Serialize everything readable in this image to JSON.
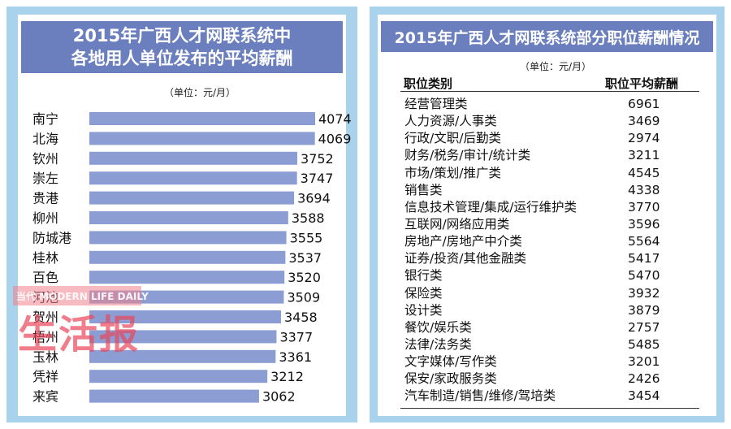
{
  "left": {
    "title_line1": "2015年广西人才网联系统中",
    "title_line2": "各地用人单位发布的平均薪酬",
    "unit": "（单位：元/月）"
  },
  "right": {
    "title": "2015年广西人才网联系统部分职位薪酬情况",
    "unit": "（单位：元/月）",
    "col1": "职位类别",
    "col2": "职位平均薪酬",
    "rows": [
      {
        "cat": "经营管理类",
        "sal": "6961"
      },
      {
        "cat": "人力资源/人事类",
        "sal": "3469"
      },
      {
        "cat": "行政/文职/后勤类",
        "sal": "2974"
      },
      {
        "cat": "财务/税务/审计/统计类",
        "sal": "3211"
      },
      {
        "cat": "市场/策划/推广类",
        "sal": "4545"
      },
      {
        "cat": "销售类",
        "sal": "4338"
      },
      {
        "cat": "信息技术管理/集成/运行维护类",
        "sal": "3770"
      },
      {
        "cat": "互联网/网络应用类",
        "sal": "3596"
      },
      {
        "cat": "房地产/房地产中介类",
        "sal": "5564"
      },
      {
        "cat": "证券/投资/其他金融类",
        "sal": "5417"
      },
      {
        "cat": "银行类",
        "sal": "5470"
      },
      {
        "cat": "保险类",
        "sal": "3932"
      },
      {
        "cat": "设计类",
        "sal": "3879"
      },
      {
        "cat": "餐饮/娱乐类",
        "sal": "2757"
      },
      {
        "cat": "法律/法务类",
        "sal": "5485"
      },
      {
        "cat": "文字媒体/写作类",
        "sal": "3201"
      },
      {
        "cat": "保安/家政服务类",
        "sal": "2426"
      },
      {
        "cat": "汽车制造/销售/维修/驾培类",
        "sal": "3454"
      }
    ]
  },
  "watermark": {
    "band": "当代 MODERN LIFE DAILY",
    "big": "生活报"
  },
  "colors": {
    "bar": "#8c9dd3",
    "title_bg": "#6b7fbf",
    "frame": "#a9d3ec"
  },
  "chart_data": {
    "type": "bar",
    "orientation": "horizontal",
    "title": "2015年广西人才网联系统中各地用人单位发布的平均薪酬",
    "unit": "（单位：元/月）",
    "categories": [
      "南宁",
      "北海",
      "钦州",
      "崇左",
      "贵港",
      "柳州",
      "防城港",
      "桂林",
      "百色",
      "河池",
      "贺州",
      "梧州",
      "玉林",
      "凭祥",
      "来宾"
    ],
    "values": [
      4074,
      4069,
      3752,
      3747,
      3694,
      3588,
      3555,
      3537,
      3520,
      3509,
      3458,
      3377,
      3361,
      3212,
      3062
    ]
  }
}
